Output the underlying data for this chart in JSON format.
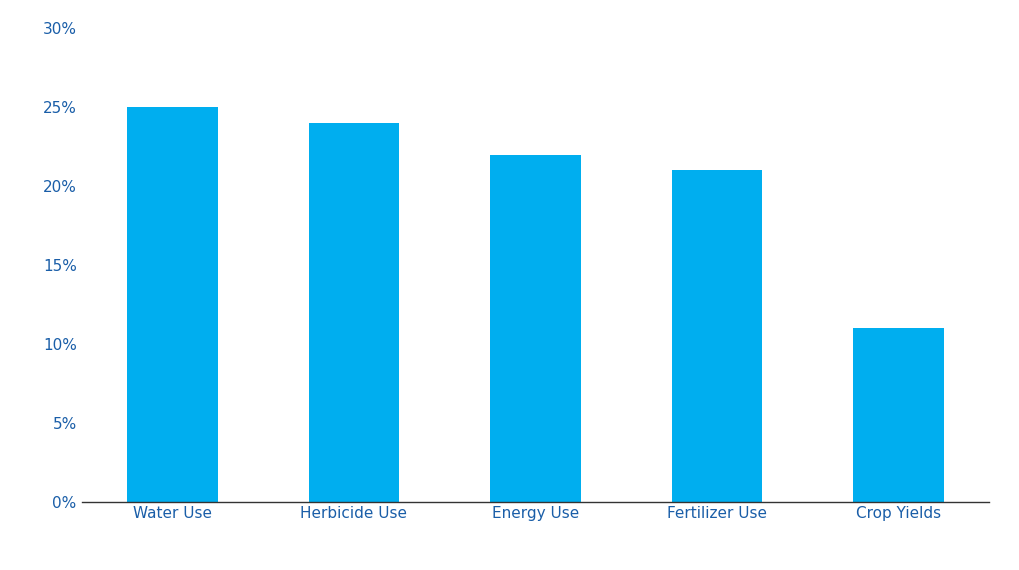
{
  "categories": [
    "Water Use",
    "Herbicide Use",
    "Energy Use",
    "Fertilizer Use",
    "Crop Yields"
  ],
  "values": [
    0.25,
    0.24,
    0.22,
    0.21,
    0.11
  ],
  "bar_color": "#00AEEF",
  "background_color": "#FFFFFF",
  "ylim": [
    0,
    0.3
  ],
  "yticks": [
    0,
    0.05,
    0.1,
    0.15,
    0.2,
    0.25,
    0.3
  ],
  "ytick_labels": [
    "0%",
    "5%",
    "10%",
    "15%",
    "20%",
    "25%",
    "30%"
  ],
  "tick_label_color": "#1A5EA8",
  "bottom_spine_color": "#333333",
  "bar_width": 0.5,
  "label_fontsize": 11
}
